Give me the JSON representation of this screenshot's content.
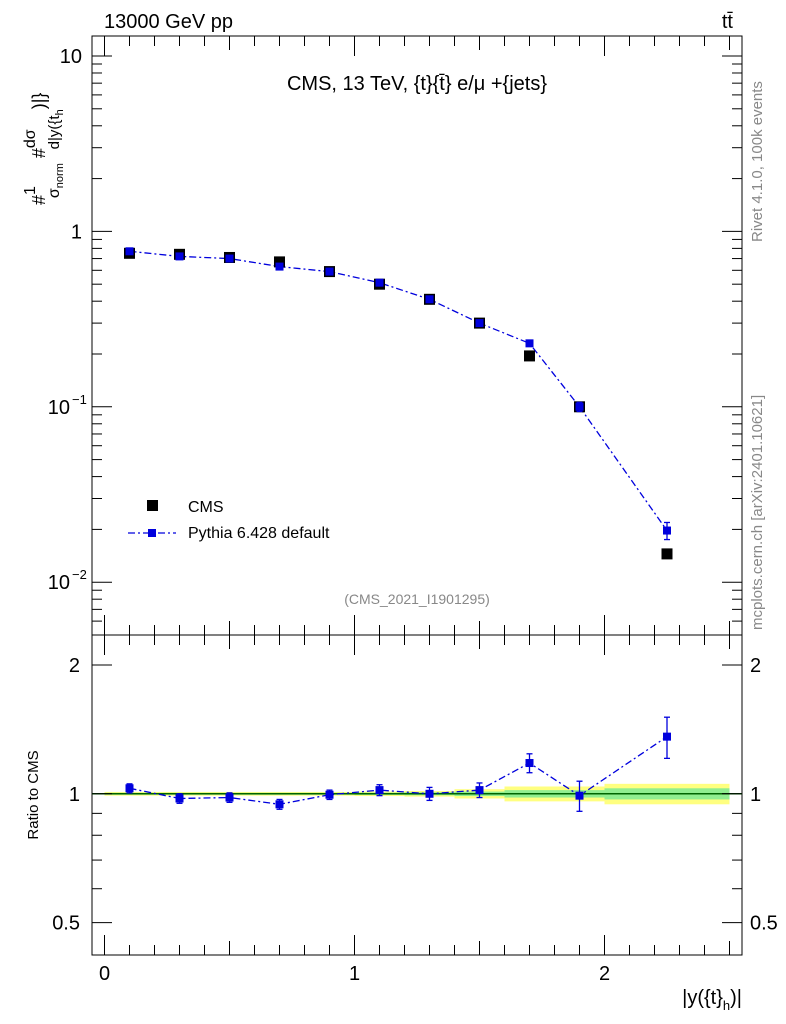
{
  "header": {
    "left": "13000 GeV pp",
    "right": "tt̄"
  },
  "side_labels": {
    "rivet": "Rivet 4.1.0,  100k events",
    "mcplots": "mcplots.cern.ch [arXiv:2401.10621]"
  },
  "colors": {
    "data": "#000000",
    "mc": "#0000dd",
    "band_inner": "#90ee90",
    "band_outer": "#ffff80",
    "ref_line": "#006400",
    "watermark": "#888888"
  },
  "chart_data": [
    {
      "type": "scatter",
      "title": "CMS, 13 TeV, {t}{t̄} e/μ +{jets}",
      "ylabel": "#frac{1}{σ_norm} #frac{dσ}{d|y({t}_h)|}",
      "watermark": "(CMS_2021_I1901295)",
      "yscale": "log",
      "ylim": [
        0.005,
        13
      ],
      "xlim": [
        -0.05,
        2.55
      ],
      "yticks": [
        {
          "value": 10,
          "label": "10"
        },
        {
          "value": 1,
          "label": "1"
        },
        {
          "value": 0.1,
          "label": "10",
          "exp": "−1"
        },
        {
          "value": 0.01,
          "label": "10",
          "exp": "−2"
        }
      ],
      "legend": {
        "position": "bottom-left",
        "entries": [
          "CMS",
          "Pythia 6.428 default"
        ]
      },
      "x": [
        0.1,
        0.3,
        0.5,
        0.7,
        0.9,
        1.1,
        1.3,
        1.5,
        1.7,
        1.9,
        2.25
      ],
      "x_halfwidth": [
        0.1,
        0.1,
        0.1,
        0.1,
        0.1,
        0.1,
        0.1,
        0.1,
        0.1,
        0.1,
        0.25
      ],
      "series": [
        {
          "name": "CMS",
          "values": [
            0.75,
            0.74,
            0.71,
            0.67,
            0.59,
            0.5,
            0.41,
            0.3,
            0.195,
            0.1,
            0.0145
          ]
        },
        {
          "name": "Pythia 6.428 default",
          "values": [
            0.77,
            0.72,
            0.7,
            0.63,
            0.59,
            0.51,
            0.41,
            0.3,
            0.23,
            0.1,
            0.0197
          ],
          "errors": [
            0.01,
            0.01,
            0.01,
            0.01,
            0.01,
            0.01,
            0.01,
            0.008,
            0.008,
            0.006,
            0.0022
          ]
        }
      ]
    },
    {
      "type": "scatter",
      "ylabel": "Ratio to CMS",
      "xlabel": "|y({t}_h)|",
      "xlim": [
        -0.05,
        2.55
      ],
      "ylim": [
        0.42,
        2.35
      ],
      "yscale": "log",
      "yticks": [
        {
          "value": 2,
          "label": "2"
        },
        {
          "value": 1,
          "label": "1"
        },
        {
          "value": 0.5,
          "label": "0.5"
        }
      ],
      "xticks": [
        {
          "value": 0,
          "label": "0"
        },
        {
          "value": 1,
          "label": "1"
        },
        {
          "value": 2,
          "label": "2"
        }
      ],
      "x": [
        0.1,
        0.3,
        0.5,
        0.7,
        0.9,
        1.1,
        1.3,
        1.5,
        1.7,
        1.9,
        2.25
      ],
      "x_halfwidth": [
        0.1,
        0.1,
        0.1,
        0.1,
        0.1,
        0.1,
        0.1,
        0.1,
        0.1,
        0.1,
        0.25
      ],
      "band_outer": [
        0.01,
        0.01,
        0.01,
        0.01,
        0.01,
        0.012,
        0.015,
        0.025,
        0.04,
        0.04,
        0.055
      ],
      "band_inner": [
        0.005,
        0.005,
        0.005,
        0.005,
        0.005,
        0.006,
        0.008,
        0.012,
        0.02,
        0.02,
        0.03
      ],
      "series": [
        {
          "name": "Pythia 6.428 default",
          "values": [
            1.03,
            0.975,
            0.98,
            0.945,
            0.995,
            1.02,
            1.0,
            1.02,
            1.18,
            0.99,
            1.36
          ],
          "errors": [
            0.025,
            0.025,
            0.025,
            0.025,
            0.025,
            0.03,
            0.035,
            0.04,
            0.06,
            0.08,
            0.15
          ]
        }
      ]
    }
  ]
}
